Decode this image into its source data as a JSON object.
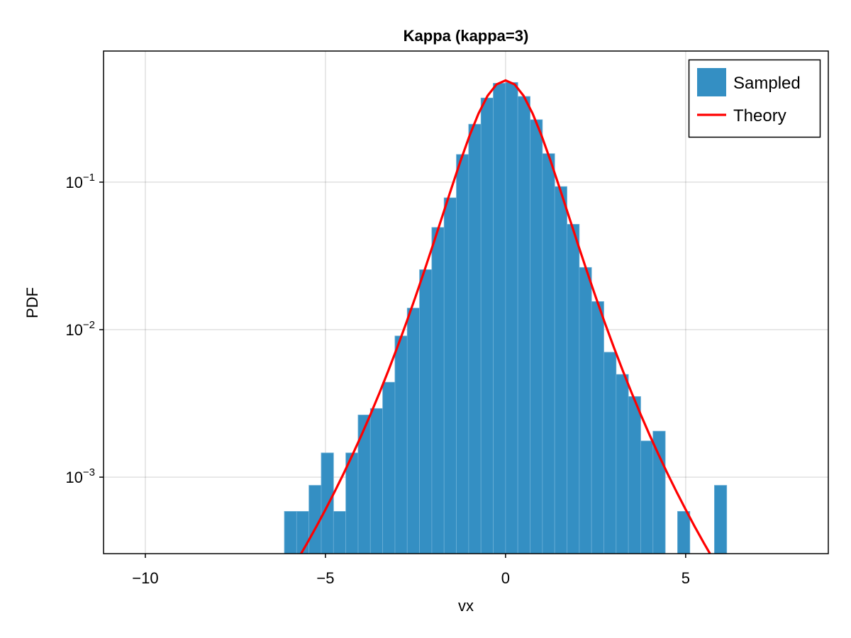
{
  "chart_data": {
    "type": "bar",
    "title": "Kappa (kappa=3)",
    "xlabel": "vx",
    "ylabel": "PDF",
    "xlim": [
      -11.16,
      8.96
    ],
    "ylim": [
      0.000303,
      0.774
    ],
    "yscale": "log",
    "grid": true,
    "legend_position": "top-right",
    "x_ticks": [
      {
        "value": -10,
        "label": "−10"
      },
      {
        "value": -5,
        "label": "−5"
      },
      {
        "value": 0,
        "label": "0"
      },
      {
        "value": 5,
        "label": "5"
      }
    ],
    "y_ticks": [
      {
        "value": 0.001,
        "base": "10",
        "exp": "−3"
      },
      {
        "value": 0.01,
        "base": "10",
        "exp": "−2"
      },
      {
        "value": 0.1,
        "base": "10",
        "exp": "−1"
      }
    ],
    "colors": {
      "bars": "#348fc3",
      "theory": "#ff0000"
    },
    "series": [
      {
        "name": "Sampled",
        "type": "histogram",
        "bin_start": -6.14,
        "bin_width": 0.3411,
        "values": [
          0.000586,
          0.000586,
          0.00088,
          0.00146,
          0.000586,
          0.00146,
          0.00264,
          0.00292,
          0.0044,
          0.00906,
          0.014,
          0.0255,
          0.0493,
          0.0783,
          0.154,
          0.247,
          0.372,
          0.468,
          0.474,
          0.381,
          0.265,
          0.156,
          0.0933,
          0.0518,
          0.0264,
          0.0155,
          0.00703,
          0.00497,
          0.00352,
          0.00176,
          0.00205,
          0,
          0.000586,
          0,
          0,
          0.00088
        ]
      },
      {
        "name": "Theory",
        "type": "line",
        "x": [
          -6,
          -5.75,
          -5.5,
          -5.25,
          -5,
          -4.75,
          -4.5,
          -4.25,
          -4,
          -3.75,
          -3.5,
          -3.25,
          -3,
          -2.75,
          -2.5,
          -2.25,
          -2,
          -1.75,
          -1.5,
          -1.25,
          -1,
          -0.75,
          -0.5,
          -0.25,
          0,
          0.25,
          0.5,
          0.75,
          1,
          1.25,
          1.5,
          1.75,
          2,
          2.25,
          2.5,
          2.75,
          3,
          3.25,
          3.5,
          3.75,
          4,
          4.25,
          4.5,
          4.75,
          5,
          5.25,
          5.5,
          5.75,
          6
        ],
        "y": [
          0.0002229,
          0.0002819,
          0.0003597,
          0.0004632,
          0.0006023,
          0.0007916,
          0.001052,
          0.001415,
          0.001928,
          0.002662,
          0.003728,
          0.0053,
          0.007652,
          0.01122,
          0.01671,
          0.02523,
          0.03855,
          0.05934,
          0.09137,
          0.1392,
          0.2066,
          0.2924,
          0.3852,
          0.4603,
          0.4897,
          0.4603,
          0.3852,
          0.2924,
          0.2066,
          0.1392,
          0.09137,
          0.05934,
          0.03855,
          0.02523,
          0.01671,
          0.01122,
          0.007652,
          0.0053,
          0.003728,
          0.002662,
          0.001928,
          0.001415,
          0.001052,
          0.0007916,
          0.0006023,
          0.0004632,
          0.0003597,
          0.0002819,
          0.0002229
        ]
      }
    ]
  }
}
